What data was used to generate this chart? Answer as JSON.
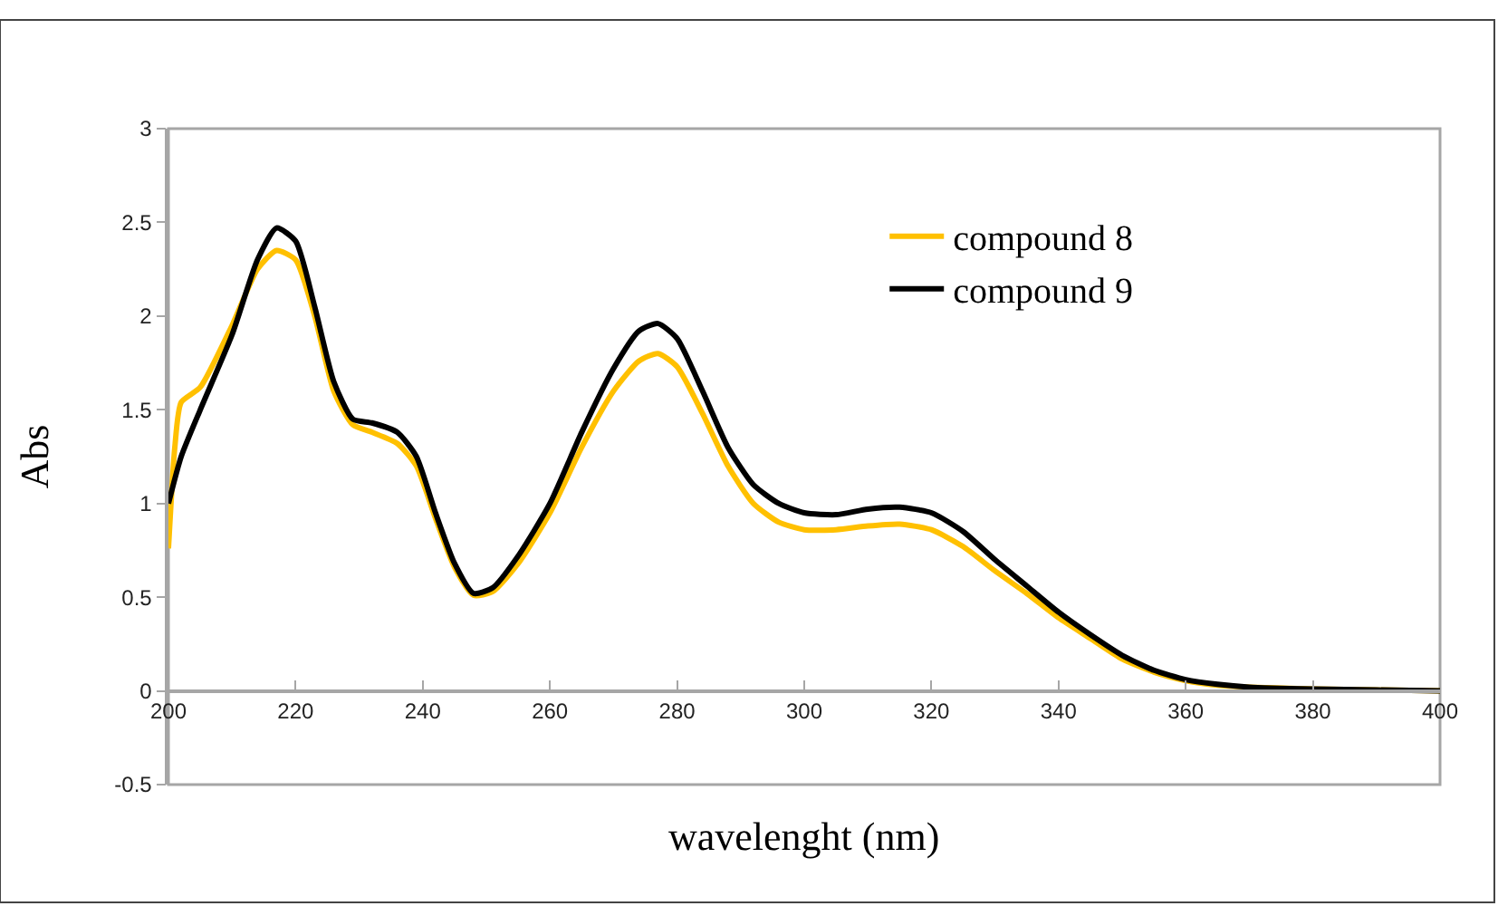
{
  "chart_data": {
    "type": "line",
    "xlabel": "wavelenght (nm)",
    "ylabel": "Abs",
    "xlim": [
      200,
      400
    ],
    "xticks": [
      200,
      220,
      240,
      260,
      280,
      300,
      320,
      340,
      360,
      380,
      400
    ],
    "ylim": [
      -0.5,
      3
    ],
    "yticks": [
      -0.5,
      0,
      0.5,
      1,
      1.5,
      2,
      2.5,
      3
    ],
    "grid": false,
    "legend": "top right",
    "marker": "none",
    "line_style": "solid",
    "series": [
      {
        "name": "compound 8",
        "color": "#ffc000",
        "x": [
          200,
          201,
          202,
          205,
          210,
          214,
          217,
          220,
          223,
          226,
          229,
          232,
          236,
          239,
          242,
          245,
          248,
          251,
          255,
          260,
          265,
          270,
          274,
          277,
          280,
          284,
          288,
          292,
          296,
          300,
          305,
          310,
          315,
          320,
          325,
          330,
          335,
          340,
          345,
          350,
          355,
          360,
          365,
          370,
          380,
          390,
          400
        ],
        "values": [
          0.76,
          1.3,
          1.54,
          1.62,
          1.95,
          2.25,
          2.35,
          2.3,
          2.0,
          1.6,
          1.42,
          1.38,
          1.32,
          1.2,
          0.92,
          0.66,
          0.51,
          0.53,
          0.68,
          0.95,
          1.3,
          1.6,
          1.76,
          1.8,
          1.73,
          1.48,
          1.2,
          1.0,
          0.9,
          0.86,
          0.86,
          0.88,
          0.89,
          0.86,
          0.77,
          0.64,
          0.52,
          0.39,
          0.28,
          0.17,
          0.1,
          0.055,
          0.03,
          0.02,
          0.01,
          0.005,
          0
        ]
      },
      {
        "name": "compound 9",
        "color": "#000000",
        "x": [
          200,
          202,
          205,
          210,
          214,
          217,
          220,
          223,
          226,
          229,
          232,
          236,
          239,
          242,
          245,
          248,
          251,
          255,
          260,
          265,
          270,
          274,
          277,
          280,
          284,
          288,
          292,
          296,
          300,
          305,
          310,
          315,
          320,
          325,
          330,
          335,
          340,
          345,
          350,
          355,
          360,
          365,
          370,
          380,
          390,
          400
        ],
        "values": [
          1.0,
          1.25,
          1.5,
          1.9,
          2.3,
          2.47,
          2.4,
          2.05,
          1.65,
          1.45,
          1.43,
          1.38,
          1.25,
          0.95,
          0.68,
          0.52,
          0.55,
          0.72,
          1.0,
          1.38,
          1.72,
          1.92,
          1.96,
          1.88,
          1.6,
          1.3,
          1.1,
          1.0,
          0.95,
          0.94,
          0.97,
          0.98,
          0.95,
          0.85,
          0.7,
          0.56,
          0.42,
          0.3,
          0.19,
          0.11,
          0.06,
          0.035,
          0.02,
          0.01,
          0.005,
          0
        ]
      }
    ]
  }
}
